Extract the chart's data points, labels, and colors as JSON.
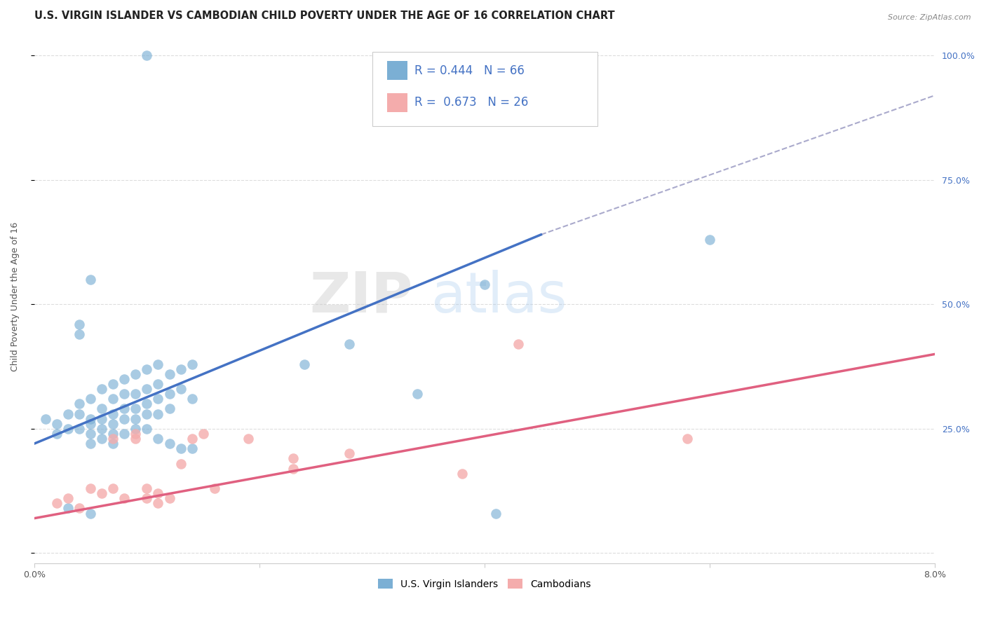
{
  "title": "U.S. VIRGIN ISLANDER VS CAMBODIAN CHILD POVERTY UNDER THE AGE OF 16 CORRELATION CHART",
  "source": "Source: ZipAtlas.com",
  "ylabel": "Child Poverty Under the Age of 16",
  "xlim": [
    0.0,
    0.08
  ],
  "ylim": [
    -0.02,
    1.05
  ],
  "yticks": [
    0.0,
    0.25,
    0.5,
    0.75,
    1.0
  ],
  "ytick_labels": [
    "",
    "25.0%",
    "50.0%",
    "75.0%",
    "100.0%"
  ],
  "blue_color": "#7BAFD4",
  "blue_color_dark": "#4472C4",
  "pink_color": "#F4ACAC",
  "pink_color_dark": "#E06080",
  "r_blue": 0.444,
  "n_blue": 66,
  "r_pink": 0.673,
  "n_pink": 26,
  "legend_label_blue": "U.S. Virgin Islanders",
  "legend_label_pink": "Cambodians",
  "blue_scatter": [
    [
      0.001,
      0.27
    ],
    [
      0.002,
      0.26
    ],
    [
      0.002,
      0.24
    ],
    [
      0.003,
      0.28
    ],
    [
      0.003,
      0.25
    ],
    [
      0.004,
      0.3
    ],
    [
      0.004,
      0.28
    ],
    [
      0.004,
      0.25
    ],
    [
      0.005,
      0.31
    ],
    [
      0.005,
      0.27
    ],
    [
      0.005,
      0.26
    ],
    [
      0.005,
      0.24
    ],
    [
      0.005,
      0.22
    ],
    [
      0.006,
      0.33
    ],
    [
      0.006,
      0.29
    ],
    [
      0.006,
      0.27
    ],
    [
      0.006,
      0.25
    ],
    [
      0.006,
      0.23
    ],
    [
      0.007,
      0.34
    ],
    [
      0.007,
      0.31
    ],
    [
      0.007,
      0.28
    ],
    [
      0.007,
      0.26
    ],
    [
      0.007,
      0.24
    ],
    [
      0.007,
      0.22
    ],
    [
      0.008,
      0.35
    ],
    [
      0.008,
      0.32
    ],
    [
      0.008,
      0.29
    ],
    [
      0.008,
      0.27
    ],
    [
      0.008,
      0.24
    ],
    [
      0.009,
      0.36
    ],
    [
      0.009,
      0.32
    ],
    [
      0.009,
      0.29
    ],
    [
      0.009,
      0.27
    ],
    [
      0.009,
      0.25
    ],
    [
      0.01,
      0.37
    ],
    [
      0.01,
      0.33
    ],
    [
      0.01,
      0.3
    ],
    [
      0.01,
      0.28
    ],
    [
      0.01,
      0.25
    ],
    [
      0.011,
      0.38
    ],
    [
      0.011,
      0.34
    ],
    [
      0.011,
      0.31
    ],
    [
      0.011,
      0.28
    ],
    [
      0.011,
      0.23
    ],
    [
      0.012,
      0.36
    ],
    [
      0.012,
      0.32
    ],
    [
      0.012,
      0.29
    ],
    [
      0.012,
      0.22
    ],
    [
      0.013,
      0.37
    ],
    [
      0.013,
      0.33
    ],
    [
      0.013,
      0.21
    ],
    [
      0.014,
      0.38
    ],
    [
      0.014,
      0.31
    ],
    [
      0.014,
      0.21
    ],
    [
      0.004,
      0.46
    ],
    [
      0.004,
      0.44
    ],
    [
      0.005,
      0.55
    ],
    [
      0.003,
      0.09
    ],
    [
      0.024,
      0.38
    ],
    [
      0.028,
      0.42
    ],
    [
      0.034,
      0.32
    ],
    [
      0.04,
      0.54
    ],
    [
      0.041,
      0.08
    ],
    [
      0.06,
      0.63
    ],
    [
      0.01,
      1.0
    ],
    [
      0.005,
      0.08
    ]
  ],
  "pink_scatter": [
    [
      0.002,
      0.1
    ],
    [
      0.003,
      0.11
    ],
    [
      0.004,
      0.09
    ],
    [
      0.005,
      0.13
    ],
    [
      0.006,
      0.12
    ],
    [
      0.007,
      0.13
    ],
    [
      0.007,
      0.23
    ],
    [
      0.008,
      0.11
    ],
    [
      0.009,
      0.23
    ],
    [
      0.009,
      0.24
    ],
    [
      0.01,
      0.13
    ],
    [
      0.01,
      0.11
    ],
    [
      0.011,
      0.12
    ],
    [
      0.011,
      0.1
    ],
    [
      0.012,
      0.11
    ],
    [
      0.013,
      0.18
    ],
    [
      0.014,
      0.23
    ],
    [
      0.015,
      0.24
    ],
    [
      0.016,
      0.13
    ],
    [
      0.019,
      0.23
    ],
    [
      0.023,
      0.19
    ],
    [
      0.023,
      0.17
    ],
    [
      0.028,
      0.2
    ],
    [
      0.038,
      0.16
    ],
    [
      0.043,
      0.42
    ],
    [
      0.058,
      0.23
    ]
  ],
  "blue_line_x": [
    0.0,
    0.045
  ],
  "blue_line_y": [
    0.22,
    0.64
  ],
  "dashed_line_x": [
    0.045,
    0.08
  ],
  "dashed_line_y": [
    0.64,
    0.92
  ],
  "pink_line_x": [
    0.0,
    0.08
  ],
  "pink_line_y": [
    0.07,
    0.4
  ],
  "background_color": "#FFFFFF",
  "grid_color": "#DDDDDD",
  "title_fontsize": 10.5,
  "axis_label_fontsize": 9,
  "tick_fontsize": 9,
  "legend_fontsize": 12
}
